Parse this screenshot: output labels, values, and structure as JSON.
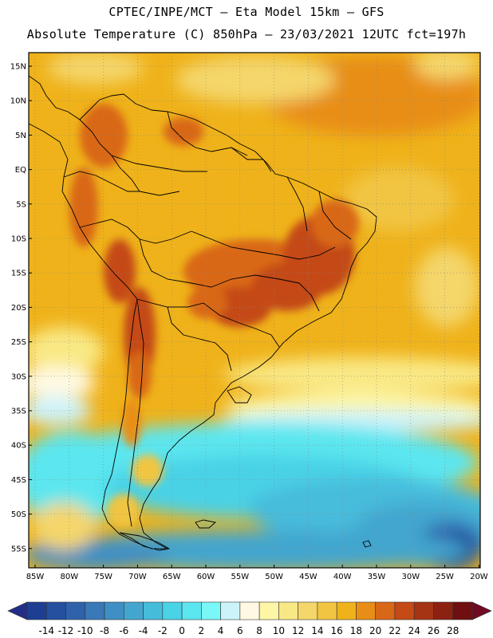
{
  "header": {
    "line1": "CPTEC/INPE/MCT –  Eta Model 15km – GFS",
    "line2": "Absolute Temperature (C) 850hPa – 23/03/2021 12UTC fct=197h"
  },
  "map": {
    "latitude_labels": [
      "15N",
      "10N",
      "5N",
      "EQ",
      "5S",
      "10S",
      "15S",
      "20S",
      "25S",
      "30S",
      "35S",
      "40S",
      "45S",
      "50S",
      "55S"
    ],
    "longitude_labels": [
      "85W",
      "80W",
      "75W",
      "70W",
      "65W",
      "60W",
      "55W",
      "50W",
      "45W",
      "40W",
      "35W",
      "30W",
      "25W",
      "20W"
    ]
  },
  "colorbar": {
    "labels": [
      "-14",
      "-12",
      "-10",
      "-8",
      "-6",
      "-4",
      "-2",
      "0",
      "2",
      "4",
      "6",
      "8",
      "10",
      "12",
      "14",
      "16",
      "18",
      "20",
      "22",
      "24",
      "26",
      "28"
    ],
    "colors": [
      "#1c3f94",
      "#25509f",
      "#2f62ab",
      "#3a78b8",
      "#3f8fc4",
      "#43a6cf",
      "#46bcdb",
      "#4ad2e6",
      "#5ce6ef",
      "#7af7f7",
      "#cdf3fa",
      "#fff9e3",
      "#fdf6a6",
      "#f9e985",
      "#f4d66a",
      "#f1c542",
      "#efb21a",
      "#e88e16",
      "#d96718",
      "#c44a16",
      "#a53414",
      "#8c2112",
      "#6f0f0f"
    ],
    "underflow_color": "#232f86",
    "overflow_color": "#6e0b22"
  }
}
